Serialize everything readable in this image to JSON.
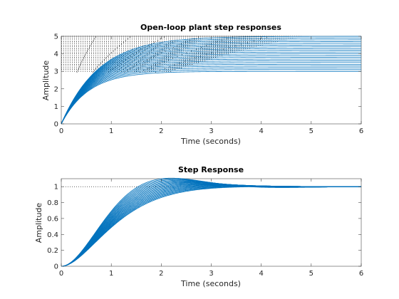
{
  "window": {
    "background": "#ffffff"
  },
  "colors": {
    "series": "#0072bd",
    "reference": "#000000",
    "axes": "#262626"
  },
  "chart_data": [
    {
      "type": "line",
      "title": "Open-loop plant step responses",
      "xlabel": "Time (seconds)",
      "ylabel": "Amplitude",
      "xlim": [
        0,
        6
      ],
      "ylim": [
        0,
        5
      ],
      "xticks": [
        0,
        1,
        2,
        3,
        4,
        5,
        6
      ],
      "yticks": [
        0,
        1,
        2,
        3,
        4,
        5
      ],
      "grid": false,
      "response": "first-order",
      "gains": [
        3.0,
        3.1,
        3.2,
        3.3,
        3.4,
        3.5,
        3.6,
        3.7,
        3.8,
        3.9,
        4.0,
        4.1,
        4.2,
        4.3,
        4.4,
        4.5,
        4.6,
        4.7,
        4.8,
        4.9,
        5.0
      ],
      "time_constant_range": [
        0.55,
        0.75
      ],
      "steady_state_dotted_lines": true,
      "x_end": 6
    },
    {
      "type": "line",
      "title": "Step Response",
      "xlabel": "Time (seconds)",
      "ylabel": "Amplitude",
      "xlim": [
        0,
        6
      ],
      "ylim": [
        0,
        1.1
      ],
      "xticks": [
        0,
        1,
        2,
        3,
        4,
        5,
        6
      ],
      "yticks": [
        0,
        0.2,
        0.4,
        0.6,
        0.8,
        1
      ],
      "grid": false,
      "response": "closed-loop",
      "series_count": 21,
      "natural_frequency_range": [
        1.75,
        1.55
      ],
      "damping_ratio_range": [
        0.58,
        0.9
      ],
      "reference_value": 1,
      "x_end": 6
    }
  ]
}
